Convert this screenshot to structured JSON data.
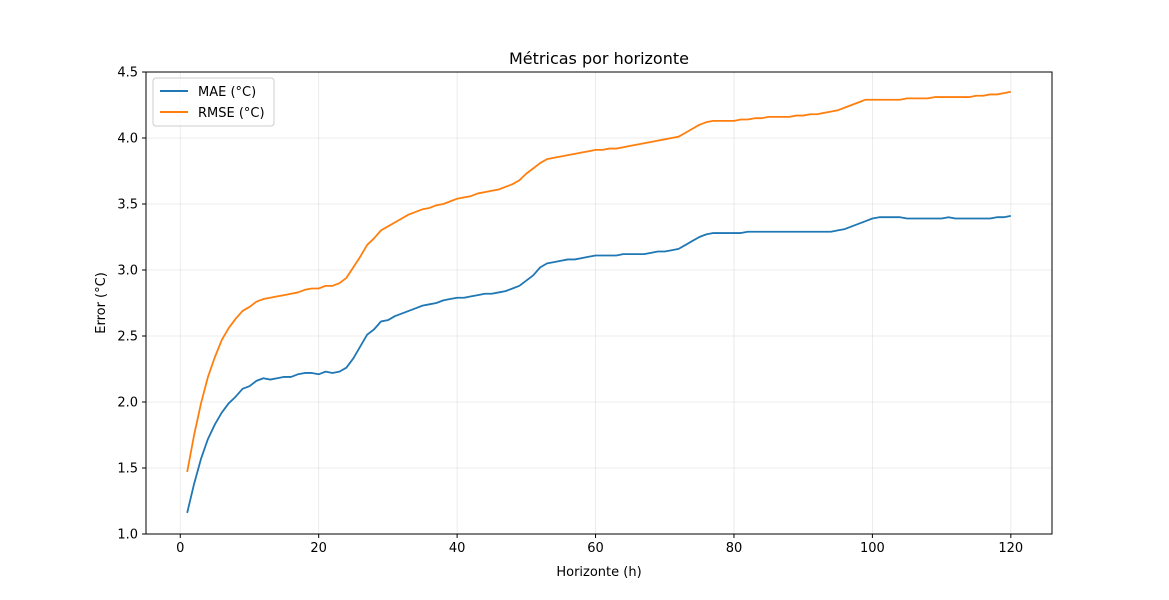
{
  "chart_data": {
    "type": "line",
    "title": "Métricas por horizonte",
    "xlabel": "Horizonte (h)",
    "ylabel": "Error (°C)",
    "xlim": [
      -4.95,
      125.95
    ],
    "ylim": [
      1.0,
      4.5
    ],
    "xticks": [
      0,
      20,
      40,
      60,
      80,
      100,
      120
    ],
    "yticks": [
      1.0,
      1.5,
      2.0,
      2.5,
      3.0,
      3.5,
      4.0,
      4.5
    ],
    "grid": true,
    "legend_position": "upper-left",
    "x_start": 1,
    "series": [
      {
        "name": "MAE (°C)",
        "color": "#1f77b4",
        "values": [
          1.16,
          1.38,
          1.57,
          1.72,
          1.83,
          1.92,
          1.99,
          2.04,
          2.1,
          2.12,
          2.16,
          2.18,
          2.17,
          2.18,
          2.19,
          2.19,
          2.21,
          2.22,
          2.22,
          2.21,
          2.23,
          2.22,
          2.23,
          2.26,
          2.33,
          2.42,
          2.51,
          2.55,
          2.61,
          2.62,
          2.65,
          2.67,
          2.69,
          2.71,
          2.73,
          2.74,
          2.75,
          2.77,
          2.78,
          2.79,
          2.79,
          2.8,
          2.81,
          2.82,
          2.82,
          2.83,
          2.84,
          2.86,
          2.88,
          2.92,
          2.96,
          3.02,
          3.05,
          3.06,
          3.07,
          3.08,
          3.08,
          3.09,
          3.1,
          3.11,
          3.11,
          3.11,
          3.11,
          3.12,
          3.12,
          3.12,
          3.12,
          3.13,
          3.14,
          3.14,
          3.15,
          3.16,
          3.19,
          3.22,
          3.25,
          3.27,
          3.28,
          3.28,
          3.28,
          3.28,
          3.28,
          3.29,
          3.29,
          3.29,
          3.29,
          3.29,
          3.29,
          3.29,
          3.29,
          3.29,
          3.29,
          3.29,
          3.29,
          3.29,
          3.3,
          3.31,
          3.33,
          3.35,
          3.37,
          3.39,
          3.4,
          3.4,
          3.4,
          3.4,
          3.39,
          3.39,
          3.39,
          3.39,
          3.39,
          3.39,
          3.4,
          3.39,
          3.39,
          3.39,
          3.39,
          3.39,
          3.39,
          3.4,
          3.4,
          3.41
        ]
      },
      {
        "name": "RMSE (°C)",
        "color": "#ff7f0e",
        "values": [
          1.47,
          1.75,
          1.99,
          2.19,
          2.34,
          2.47,
          2.56,
          2.63,
          2.69,
          2.72,
          2.76,
          2.78,
          2.79,
          2.8,
          2.81,
          2.82,
          2.83,
          2.85,
          2.86,
          2.86,
          2.88,
          2.88,
          2.9,
          2.94,
          3.02,
          3.1,
          3.19,
          3.24,
          3.3,
          3.33,
          3.36,
          3.39,
          3.42,
          3.44,
          3.46,
          3.47,
          3.49,
          3.5,
          3.52,
          3.54,
          3.55,
          3.56,
          3.58,
          3.59,
          3.6,
          3.61,
          3.63,
          3.65,
          3.68,
          3.73,
          3.77,
          3.81,
          3.84,
          3.85,
          3.86,
          3.87,
          3.88,
          3.89,
          3.9,
          3.91,
          3.91,
          3.92,
          3.92,
          3.93,
          3.94,
          3.95,
          3.96,
          3.97,
          3.98,
          3.99,
          4.0,
          4.01,
          4.04,
          4.07,
          4.1,
          4.12,
          4.13,
          4.13,
          4.13,
          4.13,
          4.14,
          4.14,
          4.15,
          4.15,
          4.16,
          4.16,
          4.16,
          4.16,
          4.17,
          4.17,
          4.18,
          4.18,
          4.19,
          4.2,
          4.21,
          4.23,
          4.25,
          4.27,
          4.29,
          4.29,
          4.29,
          4.29,
          4.29,
          4.29,
          4.3,
          4.3,
          4.3,
          4.3,
          4.31,
          4.31,
          4.31,
          4.31,
          4.31,
          4.31,
          4.32,
          4.32,
          4.33,
          4.33,
          4.34,
          4.35
        ]
      }
    ]
  }
}
